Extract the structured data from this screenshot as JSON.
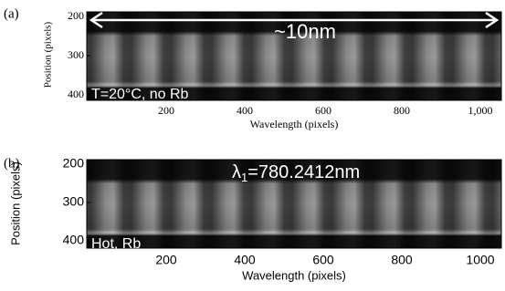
{
  "panels": [
    {
      "label": "(a)",
      "annotations": [
        "~10nm",
        "T=20°C, no Rb"
      ],
      "y_label": "Position (pixels)",
      "x_label": "Wavelength (pixels)",
      "yticks": [
        200,
        300,
        400
      ],
      "xticks": [
        200,
        400,
        600,
        800,
        {
          "value": 1000,
          "label": "1,000"
        }
      ]
    },
    {
      "label": "(b)",
      "wavelength_label": {
        "symbol": "λ",
        "subscript": "1",
        "rest": "=780.2412nm"
      },
      "annotations": [
        "Hot, Rb"
      ],
      "y_label": "Position (pixels)",
      "x_label": "Wavelength (pixels)",
      "yticks": [
        200,
        300,
        400
      ],
      "xticks": [
        200,
        400,
        600,
        800,
        1000
      ]
    }
  ]
}
